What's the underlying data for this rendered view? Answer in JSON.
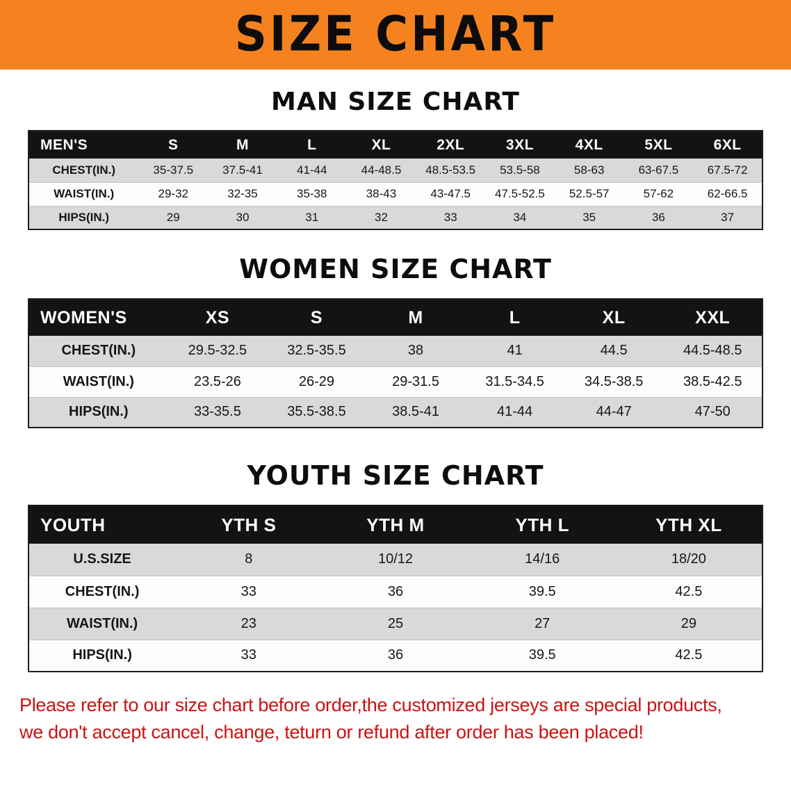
{
  "banner": {
    "title": "SIZE CHART",
    "bg_color": "#f5821f",
    "text_color": "#0c0c0c"
  },
  "colors": {
    "table_header_bg": "#131313",
    "table_header_text": "#ffffff",
    "row_shaded": "#d9d9d9",
    "row_plain": "#fdfdfd",
    "disclaimer_red": "#cc1212"
  },
  "sections": [
    {
      "heading": "MAN SIZE CHART",
      "table": {
        "header": [
          "MEN'S",
          "S",
          "M",
          "L",
          "XL",
          "2XL",
          "3XL",
          "4XL",
          "5XL",
          "6XL"
        ],
        "rows": [
          {
            "label": "CHEST(IN.)",
            "values": [
              "35-37.5",
              "37.5-41",
              "41-44",
              "44-48.5",
              "48.5-53.5",
              "53.5-58",
              "58-63",
              "63-67.5",
              "67.5-72"
            ]
          },
          {
            "label": "WAIST(IN.)",
            "values": [
              "29-32",
              "32-35",
              "35-38",
              "38-43",
              "43-47.5",
              "47.5-52.5",
              "52.5-57",
              "57-62",
              "62-66.5"
            ]
          },
          {
            "label": "HIPS(IN.)",
            "values": [
              "29",
              "30",
              "31",
              "32",
              "33",
              "34",
              "35",
              "36",
              "37"
            ]
          }
        ]
      }
    },
    {
      "heading": "WOMEN SIZE CHART",
      "table": {
        "header": [
          "WOMEN'S",
          "XS",
          "S",
          "M",
          "L",
          "XL",
          "XXL"
        ],
        "rows": [
          {
            "label": "CHEST(IN.)",
            "values": [
              "29.5-32.5",
              "32.5-35.5",
              "38",
              "41",
              "44.5",
              "44.5-48.5"
            ]
          },
          {
            "label": "WAIST(IN.)",
            "values": [
              "23.5-26",
              "26-29",
              "29-31.5",
              "31.5-34.5",
              "34.5-38.5",
              "38.5-42.5"
            ]
          },
          {
            "label": "HIPS(IN.)",
            "values": [
              "33-35.5",
              "35.5-38.5",
              "38.5-41",
              "41-44",
              "44-47",
              "47-50"
            ]
          }
        ]
      }
    },
    {
      "heading": "YOUTH SIZE CHART",
      "table": {
        "header": [
          "YOUTH",
          "YTH S",
          "YTH M",
          "YTH L",
          "YTH XL"
        ],
        "rows": [
          {
            "label": "U.S.SIZE",
            "values": [
              "8",
              "10/12",
              "14/16",
              "18/20"
            ]
          },
          {
            "label": "CHEST(IN.)",
            "values": [
              "33",
              "36",
              "39.5",
              "42.5"
            ]
          },
          {
            "label": "WAIST(IN.)",
            "values": [
              "23",
              "25",
              "27",
              "29"
            ]
          },
          {
            "label": "HIPS(IN.)",
            "values": [
              "33",
              "36",
              "39.5",
              "42.5"
            ]
          }
        ]
      }
    }
  ],
  "disclaimer": {
    "line1": "Please refer to our size chart before order,the customized jerseys are special products,",
    "line2": "we don't accept cancel, change, teturn or refund after order has been placed!"
  }
}
